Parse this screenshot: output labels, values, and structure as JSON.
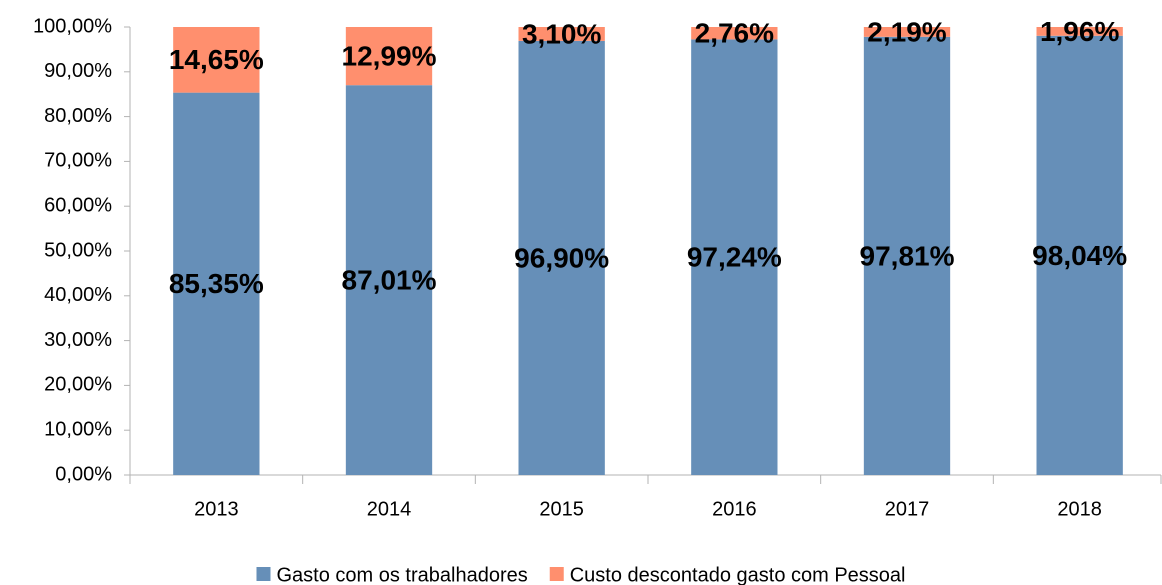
{
  "chart_data": {
    "type": "stacked_bar",
    "categories": [
      "2013",
      "2014",
      "2015",
      "2016",
      "2017",
      "2018"
    ],
    "series": [
      {
        "name": "Gasto com os trabalhadores",
        "color": "#668fb8",
        "values": [
          85.35,
          87.01,
          96.9,
          97.24,
          97.81,
          98.04
        ],
        "value_labels": [
          "85,35%",
          "87,01%",
          "96,90%",
          "97,24%",
          "97,81%",
          "98,04%"
        ]
      },
      {
        "name": "Custo descontado gasto com Pessoal",
        "color": "#ff8f6e",
        "values": [
          14.65,
          12.99,
          3.1,
          2.76,
          2.19,
          1.96
        ],
        "value_labels": [
          "14,65%",
          "12,99%",
          "3,10%",
          "2,76%",
          "2,19%",
          "1,96%"
        ]
      }
    ],
    "ylim": [
      0,
      100
    ],
    "yticks": [
      {
        "value": 0,
        "label": "0,00%"
      },
      {
        "value": 10,
        "label": "10,00%"
      },
      {
        "value": 20,
        "label": "20,00%"
      },
      {
        "value": 30,
        "label": "30,00%"
      },
      {
        "value": 40,
        "label": "40,00%"
      },
      {
        "value": 50,
        "label": "50,00%"
      },
      {
        "value": 60,
        "label": "60,00%"
      },
      {
        "value": 70,
        "label": "70,00%"
      },
      {
        "value": 80,
        "label": "80,00%"
      },
      {
        "value": 90,
        "label": "90,00%"
      },
      {
        "value": 100,
        "label": "100,00%"
      }
    ],
    "grid": false,
    "legend": "bottom"
  }
}
